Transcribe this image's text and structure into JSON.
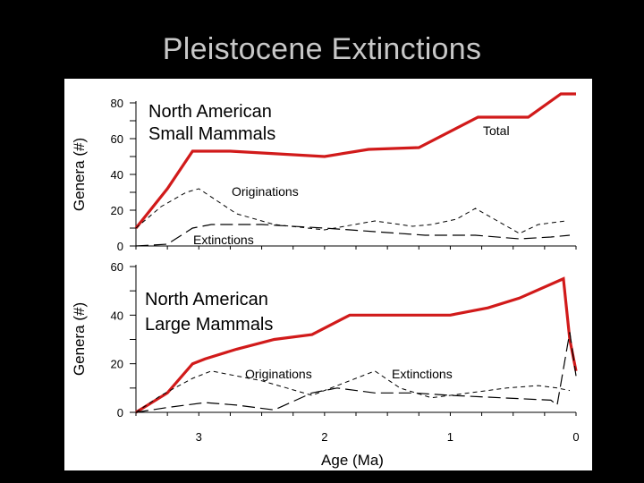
{
  "slide": {
    "title": "Pleistocene Extinctions"
  },
  "chart_data": [
    {
      "type": "line",
      "title": "North American Small Mammals",
      "title_lines": [
        "North American",
        "Small Mammals"
      ],
      "xlabel": "Age (Ma)",
      "ylabel": "Genera (#)",
      "xlim": [
        3.5,
        0
      ],
      "ylim": [
        0,
        80
      ],
      "yticks": [
        0,
        20,
        40,
        60,
        80
      ],
      "series": [
        {
          "name": "Total",
          "style": "solid-red",
          "points": [
            [
              3.5,
              10
            ],
            [
              3.25,
              32
            ],
            [
              3.05,
              53
            ],
            [
              2.75,
              53
            ],
            [
              2.5,
              52
            ],
            [
              2.0,
              50
            ],
            [
              1.65,
              54
            ],
            [
              1.25,
              55
            ],
            [
              0.78,
              72
            ],
            [
              0.38,
              72
            ],
            [
              0.12,
              85
            ],
            [
              0.0,
              85
            ]
          ]
        },
        {
          "name": "Originations",
          "style": "short-dash",
          "points": [
            [
              3.5,
              10
            ],
            [
              3.3,
              22
            ],
            [
              3.1,
              30
            ],
            [
              3.0,
              32
            ],
            [
              2.85,
              25
            ],
            [
              2.7,
              18
            ],
            [
              2.4,
              12
            ],
            [
              2.0,
              9
            ],
            [
              1.6,
              14
            ],
            [
              1.3,
              11
            ],
            [
              1.15,
              12
            ],
            [
              0.95,
              15
            ],
            [
              0.8,
              21
            ],
            [
              0.65,
              15
            ],
            [
              0.45,
              7
            ],
            [
              0.3,
              12
            ],
            [
              0.08,
              14
            ]
          ]
        },
        {
          "name": "Extinctions",
          "style": "long-dash",
          "points": [
            [
              3.5,
              0
            ],
            [
              3.25,
              1
            ],
            [
              3.05,
              10
            ],
            [
              2.9,
              12
            ],
            [
              2.5,
              12
            ],
            [
              2.0,
              10
            ],
            [
              1.6,
              8
            ],
            [
              1.2,
              6
            ],
            [
              0.8,
              6
            ],
            [
              0.45,
              4
            ],
            [
              0.2,
              5
            ],
            [
              0.05,
              6
            ]
          ]
        }
      ],
      "annotations": [
        "Total",
        "Originations",
        "Extinctions"
      ]
    },
    {
      "type": "line",
      "title": "North American Large Mammals",
      "title_lines": [
        "North American",
        "Large Mammals"
      ],
      "xlabel": "Age (Ma)",
      "ylabel": "Genera (#)",
      "xlim": [
        3.5,
        0
      ],
      "ylim": [
        0,
        60
      ],
      "yticks": [
        0,
        20,
        40,
        60
      ],
      "xticks": [
        3,
        2,
        1,
        0
      ],
      "series": [
        {
          "name": "Total",
          "style": "solid-red",
          "points": [
            [
              3.5,
              0
            ],
            [
              3.25,
              8
            ],
            [
              3.05,
              20
            ],
            [
              2.95,
              22
            ],
            [
              2.7,
              26
            ],
            [
              2.4,
              30
            ],
            [
              2.1,
              32
            ],
            [
              1.8,
              40
            ],
            [
              1.4,
              40
            ],
            [
              1.0,
              40
            ],
            [
              0.7,
              43
            ],
            [
              0.45,
              47
            ],
            [
              0.1,
              55
            ],
            [
              0.05,
              30
            ],
            [
              0.0,
              17
            ]
          ]
        },
        {
          "name": "Originations",
          "style": "short-dash",
          "points": [
            [
              3.5,
              0
            ],
            [
              3.3,
              7
            ],
            [
              3.05,
              14
            ],
            [
              2.9,
              17
            ],
            [
              2.7,
              15
            ],
            [
              2.5,
              13
            ],
            [
              2.3,
              10
            ],
            [
              2.1,
              7
            ],
            [
              1.85,
              12
            ],
            [
              1.6,
              17
            ],
            [
              1.4,
              10
            ],
            [
              1.15,
              6
            ],
            [
              0.85,
              8
            ],
            [
              0.55,
              10
            ],
            [
              0.3,
              11
            ],
            [
              0.15,
              10
            ],
            [
              0.05,
              9
            ]
          ]
        },
        {
          "name": "Extinctions",
          "style": "long-dash",
          "points": [
            [
              3.5,
              0
            ],
            [
              3.25,
              2
            ],
            [
              2.95,
              4
            ],
            [
              2.7,
              3
            ],
            [
              2.4,
              1
            ],
            [
              2.1,
              8
            ],
            [
              1.9,
              10
            ],
            [
              1.6,
              8
            ],
            [
              1.3,
              8
            ],
            [
              1.0,
              7
            ],
            [
              0.6,
              6
            ],
            [
              0.2,
              5
            ],
            [
              0.15,
              3
            ],
            [
              0.05,
              33
            ],
            [
              0.0,
              15
            ]
          ]
        }
      ],
      "annotations": [
        "Originations",
        "Extinctions"
      ]
    }
  ]
}
